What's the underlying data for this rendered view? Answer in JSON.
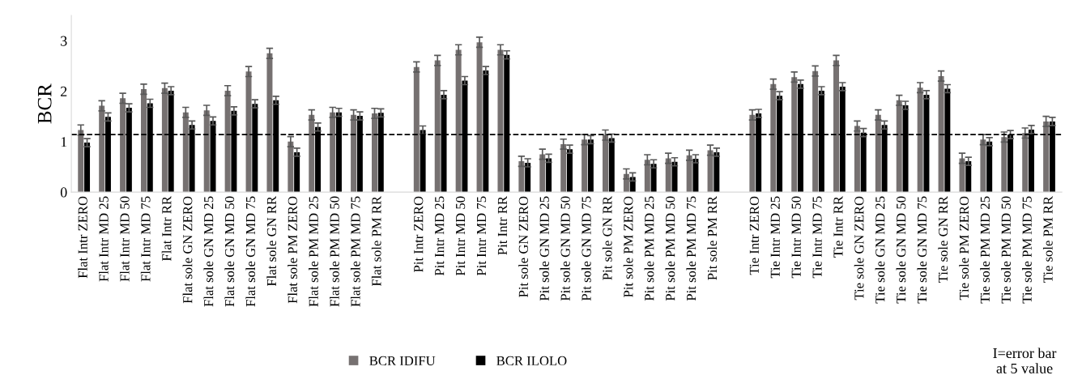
{
  "chart_data": {
    "type": "bar",
    "ylabel": "BCR",
    "categories": [
      "Flat Intr ZERO",
      "Flat Intr MD 25",
      "Flat Intr MD 50",
      "Flat Intr MD 75",
      "Flat Intr RR",
      "Flat sole GN ZERO",
      "Flat sole GN MD 25",
      "Flat sole GN MD 50",
      "Flat sole GN MD 75",
      "Flat sole GN RR",
      "Flat sole PM ZERO",
      "Flat sole PM MD 25",
      "Flat sole PM MD 50",
      "Flat sole PM MD 75",
      "Flat sole PM RR",
      null,
      "Pit Intr ZERO",
      "Pit Intr MD 25",
      "Pit Intr MD 50",
      "Pit Intr MD 75",
      "Pit Intr RR",
      "Pit sole GN ZERO",
      "Pit sole GN MD 25",
      "Pit sole GN MD 50",
      "Pit sole GN MD 75",
      "Pit sole GN RR",
      "Pit sole PM ZERO",
      "Pit sole PM MD 25",
      "Pit sole PM MD 50",
      "Pit sole PM MD 75",
      "Pit sole PM RR",
      null,
      "Tie Intr ZERO",
      "Tie Intr MD 25",
      "Tie Intr MD 50",
      "Tie Intr MD 75",
      "Tie Intr RR",
      "Tie sole GN ZERO",
      "Tie sole GN MD 25",
      "Tie sole GN MD 50",
      "Tie sole GN MD 75",
      "Tie sole GN RR",
      "Tie sole PM ZERO",
      "Tie sole PM MD 25",
      "Tie sole PM MD 50",
      "Tie sole PM MD 75",
      "Tie sole PM RR"
    ],
    "series": [
      {
        "name": "BCR IDIFU",
        "color": "#767171",
        "values": [
          1.23,
          1.71,
          1.86,
          2.04,
          2.06,
          1.58,
          1.62,
          2.01,
          2.39,
          2.75,
          1.0,
          1.53,
          1.58,
          1.53,
          1.56,
          null,
          2.48,
          2.61,
          2.82,
          2.97,
          2.82,
          0.61,
          0.75,
          0.95,
          1.04,
          1.13,
          0.36,
          0.64,
          0.67,
          0.73,
          0.83,
          null,
          1.53,
          2.14,
          2.28,
          2.4,
          2.61,
          1.31,
          1.53,
          1.82,
          2.07,
          2.3,
          0.67,
          1.04,
          1.09,
          1.17,
          1.4
        ],
        "errors": [
          0.1,
          0.1,
          0.1,
          0.1,
          0.1,
          0.1,
          0.1,
          0.1,
          0.1,
          0.1,
          0.1,
          0.1,
          0.1,
          0.1,
          0.1,
          null,
          0.1,
          0.1,
          0.1,
          0.1,
          0.1,
          0.1,
          0.1,
          0.1,
          0.1,
          0.1,
          0.1,
          0.1,
          0.1,
          0.1,
          0.1,
          null,
          0.1,
          0.1,
          0.1,
          0.1,
          0.1,
          0.1,
          0.1,
          0.1,
          0.1,
          0.1,
          0.1,
          0.1,
          0.1,
          0.1,
          0.1
        ]
      },
      {
        "name": "BCR ILOLO",
        "color": "#000000",
        "values": [
          0.98,
          1.49,
          1.67,
          1.76,
          2.01,
          1.33,
          1.41,
          1.61,
          1.75,
          1.82,
          0.79,
          1.29,
          1.58,
          1.51,
          1.57,
          null,
          1.23,
          1.93,
          2.21,
          2.41,
          2.72,
          0.58,
          0.67,
          0.85,
          1.04,
          1.07,
          0.3,
          0.56,
          0.6,
          0.66,
          0.79,
          null,
          1.56,
          1.91,
          2.14,
          2.01,
          2.09,
          1.18,
          1.33,
          1.72,
          1.93,
          2.05,
          0.61,
          1.0,
          1.14,
          1.24,
          1.4
        ],
        "errors": [
          0.08,
          0.08,
          0.08,
          0.08,
          0.08,
          0.08,
          0.08,
          0.08,
          0.08,
          0.08,
          0.08,
          0.08,
          0.08,
          0.08,
          0.08,
          null,
          0.08,
          0.08,
          0.08,
          0.08,
          0.08,
          0.08,
          0.08,
          0.08,
          0.08,
          0.08,
          0.08,
          0.08,
          0.08,
          0.08,
          0.08,
          null,
          0.08,
          0.08,
          0.08,
          0.08,
          0.08,
          0.08,
          0.08,
          0.08,
          0.08,
          0.08,
          0.08,
          0.08,
          0.08,
          0.08,
          0.08
        ]
      }
    ],
    "ylim": [
      0,
      3.5
    ],
    "yticks": [
      0,
      1,
      2,
      3
    ],
    "ref_lines": [
      {
        "axis": "y",
        "value": 1.14,
        "color": "#000000",
        "line_style": "dashed"
      }
    ],
    "annotations": [
      "I=error bar\nat 5 value"
    ],
    "legend": "bottom",
    "grid": false
  }
}
